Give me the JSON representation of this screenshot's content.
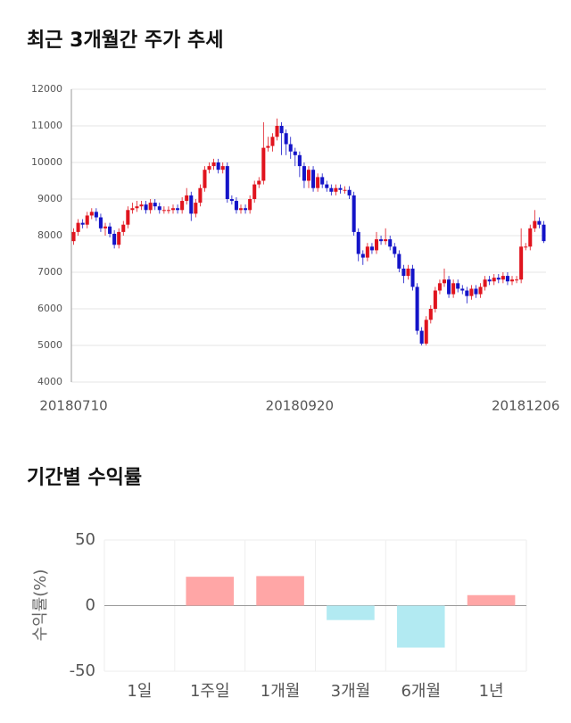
{
  "chart_data": [
    {
      "type": "candlestick",
      "title": "최근 3개월간 주가 추세",
      "categories": [
        "20180710",
        null,
        null,
        null,
        null,
        null,
        null,
        null,
        null,
        null,
        null,
        null,
        null,
        null,
        null,
        null,
        null,
        null,
        null,
        null,
        null,
        null,
        null,
        null,
        null,
        null,
        null,
        null,
        null,
        null,
        null,
        null,
        null,
        null,
        null,
        null,
        null,
        null,
        null,
        null,
        null,
        null,
        null,
        null,
        null,
        null,
        null,
        null,
        null,
        null,
        "20180920",
        null,
        null,
        null,
        null,
        null,
        null,
        null,
        null,
        null,
        null,
        null,
        null,
        null,
        null,
        null,
        null,
        null,
        null,
        null,
        null,
        null,
        null,
        null,
        null,
        null,
        null,
        null,
        null,
        null,
        null,
        null,
        null,
        null,
        null,
        null,
        null,
        null,
        null,
        null,
        null,
        null,
        null,
        null,
        null,
        null,
        null,
        null,
        null,
        null,
        "20181206",
        null,
        null,
        null,
        null
      ],
      "open": [
        7850,
        8100,
        8350,
        8300,
        8550,
        8650,
        8500,
        8200,
        8250,
        8050,
        7750,
        8100,
        8300,
        8700,
        8750,
        8800,
        8850,
        8700,
        8900,
        8800,
        8700,
        8700,
        8700,
        8750,
        8700,
        8950,
        9100,
        8600,
        8900,
        9300,
        9800,
        9900,
        10000,
        9800,
        9900,
        9000,
        8950,
        8700,
        8750,
        8700,
        9000,
        9400,
        9500,
        10400,
        10450,
        10700,
        11000,
        10800,
        10500,
        10300,
        10200,
        9900,
        9500,
        9800,
        9300,
        9600,
        9400,
        9300,
        9200,
        9300,
        9250,
        9250,
        9100,
        8100,
        7500,
        7400,
        7700,
        7600,
        7900,
        7850,
        7900,
        7700,
        7500,
        7100,
        6900,
        7100,
        6600,
        5400,
        5050,
        5700,
        6000,
        6500,
        6700,
        6800,
        6400,
        6700,
        6550,
        6500,
        6350,
        6550,
        6400,
        6600,
        6800,
        6750,
        6850,
        6800,
        6900,
        6750,
        6800,
        6800,
        7700,
        7700,
        8200,
        8400,
        8300
      ],
      "high": [
        8200,
        8450,
        8450,
        8650,
        8750,
        8750,
        8600,
        8350,
        8350,
        8150,
        8200,
        8400,
        8800,
        8900,
        8950,
        8950,
        8950,
        9000,
        9000,
        8900,
        8800,
        8800,
        8850,
        8850,
        9050,
        9300,
        9200,
        9000,
        9400,
        9900,
        10000,
        10100,
        10100,
        10000,
        10000,
        9100,
        9050,
        8850,
        8850,
        9100,
        9500,
        9600,
        11100,
        10700,
        10800,
        11200,
        11100,
        10900,
        10700,
        10400,
        10300,
        10000,
        9900,
        9900,
        9700,
        9700,
        9500,
        9400,
        9400,
        9400,
        9350,
        9350,
        9200,
        8200,
        7600,
        7800,
        7800,
        8100,
        8000,
        8200,
        8000,
        7800,
        7600,
        7200,
        7200,
        7200,
        6700,
        5500,
        5800,
        6100,
        6600,
        6800,
        7100,
        6900,
        6800,
        6800,
        6650,
        6600,
        6650,
        6650,
        6700,
        6900,
        6900,
        6950,
        6950,
        7000,
        7000,
        6900,
        6900,
        8200,
        7800,
        8300,
        8700,
        8500,
        8400
      ],
      "low": [
        7750,
        8000,
        8200,
        8200,
        8450,
        8400,
        8100,
        8000,
        7950,
        7650,
        7650,
        8000,
        8200,
        8600,
        8650,
        8700,
        8600,
        8600,
        8700,
        8600,
        8600,
        8600,
        8600,
        8600,
        8600,
        8850,
        8400,
        8500,
        8800,
        9200,
        9700,
        9800,
        9700,
        9700,
        8900,
        8850,
        8600,
        8600,
        8600,
        8600,
        8900,
        9300,
        9400,
        10300,
        10300,
        10600,
        10200,
        10200,
        10100,
        9900,
        9600,
        9300,
        9300,
        9200,
        9200,
        9300,
        9200,
        9100,
        9100,
        9150,
        9150,
        9000,
        8000,
        7300,
        7200,
        7300,
        7500,
        7500,
        7750,
        7750,
        7600,
        7400,
        7000,
        6700,
        6800,
        6500,
        5300,
        5000,
        5000,
        5600,
        5900,
        6400,
        6600,
        6300,
        6300,
        6450,
        6400,
        6150,
        6250,
        6300,
        6300,
        6500,
        6650,
        6650,
        6700,
        6700,
        6650,
        6650,
        6700,
        6700,
        7600,
        7600,
        8100,
        8200,
        7800
      ],
      "close": [
        8100,
        8350,
        8300,
        8550,
        8650,
        8500,
        8200,
        8250,
        8050,
        7750,
        8100,
        8300,
        8700,
        8750,
        8800,
        8850,
        8700,
        8900,
        8800,
        8700,
        8700,
        8700,
        8750,
        8700,
        8950,
        9100,
        8600,
        8900,
        9300,
        9800,
        9900,
        10000,
        9800,
        9900,
        9000,
        8950,
        8700,
        8750,
        8700,
        9000,
        9400,
        9500,
        10400,
        10450,
        10700,
        11000,
        10800,
        10500,
        10300,
        10200,
        9900,
        9500,
        9800,
        9300,
        9600,
        9400,
        9300,
        9200,
        9300,
        9250,
        9250,
        9100,
        8100,
        7500,
        7400,
        7700,
        7600,
        7900,
        7850,
        7900,
        7700,
        7500,
        7100,
        6900,
        7100,
        6600,
        5400,
        5050,
        5700,
        6000,
        6500,
        6700,
        6800,
        6400,
        6700,
        6550,
        6500,
        6350,
        6550,
        6400,
        6600,
        6800,
        6750,
        6850,
        6800,
        6900,
        6750,
        6800,
        6800,
        7700,
        7700,
        8200,
        8400,
        8300,
        7850
      ],
      "up_color": "#e0141e",
      "down_color": "#1414c8",
      "ylim": [
        4000,
        12000
      ],
      "yticks": [
        4000,
        5000,
        6000,
        7000,
        8000,
        9000,
        10000,
        11000,
        12000
      ],
      "grid": true
    },
    {
      "type": "bar",
      "title": "기간별 수익률",
      "y_label": "수익률(%)",
      "categories": [
        "1일",
        "1주일",
        "1개월",
        "3개월",
        "6개월",
        "1년"
      ],
      "values": [
        0,
        22,
        22.5,
        -11,
        -32,
        8
      ],
      "positive_color": "#ffa6a6",
      "negative_color": "#b2eaf2",
      "ylim": [
        -50,
        50
      ],
      "yticks": [
        -50,
        0,
        50
      ],
      "grid": true
    }
  ]
}
